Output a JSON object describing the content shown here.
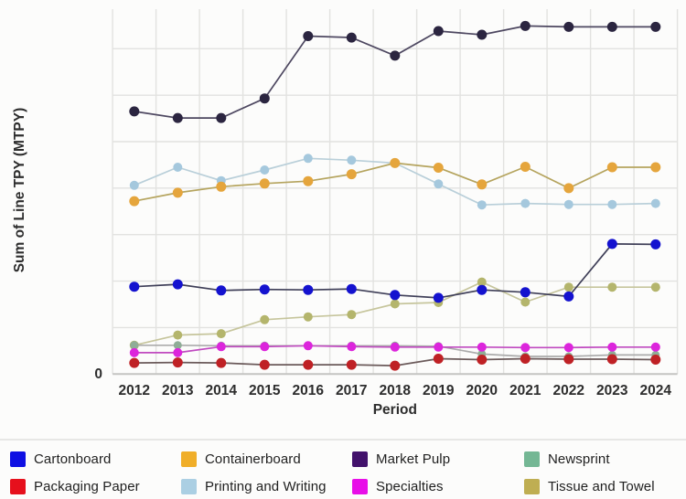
{
  "chart_data": {
    "type": "line",
    "x": [
      2012,
      2013,
      2014,
      2015,
      2016,
      2017,
      2018,
      2019,
      2020,
      2021,
      2022,
      2023,
      2024
    ],
    "xlabel": "Period",
    "ylabel": "Sum of Line TPY (MTPY)",
    "y_tick_labels": [
      "0"
    ],
    "ylim": [
      0,
      7.85
    ],
    "gridline_interval": 1,
    "grid": "on",
    "legend_position": "bottom",
    "note": "Only the 0 tick is labeled on the y-axis; series values are estimated in unlabeled gridline units",
    "series": [
      {
        "name": "Printing and Writing",
        "marker_color": "#a5c8dd",
        "line_color": "#b9cfd9",
        "marker_radius": 5,
        "values": [
          4.06,
          4.45,
          4.16,
          4.39,
          4.64,
          4.6,
          4.54,
          4.09,
          3.64,
          3.67,
          3.65,
          3.65,
          3.67
        ]
      },
      {
        "name": "Containerboard",
        "marker_color": "#e5a53c",
        "line_color": "#b5a45e",
        "marker_radius": 5.5,
        "values": [
          3.72,
          3.9,
          4.03,
          4.1,
          4.15,
          4.3,
          4.54,
          4.44,
          4.08,
          4.46,
          4.0,
          4.45,
          4.45
        ]
      },
      {
        "name": "Tissue and Towel",
        "marker_color": "#b4b56c",
        "line_color": "#c6c59c",
        "marker_radius": 5,
        "values": [
          0.62,
          0.84,
          0.87,
          1.17,
          1.23,
          1.28,
          1.51,
          1.54,
          1.98,
          1.55,
          1.87,
          1.87,
          1.87
        ]
      },
      {
        "name": "Newsprint",
        "marker_color": "#8fad97",
        "line_color": "#ababab",
        "marker_radius": 4.5,
        "values": [
          0.62,
          0.62,
          0.61,
          0.61,
          0.61,
          0.61,
          0.61,
          0.6,
          0.43,
          0.38,
          0.38,
          0.41,
          0.41
        ]
      },
      {
        "name": "Packaging Paper",
        "marker_color": "#bf2125",
        "line_color": "#6b5a5a",
        "marker_radius": 5.5,
        "values": [
          0.24,
          0.25,
          0.24,
          0.2,
          0.2,
          0.2,
          0.18,
          0.33,
          0.31,
          0.33,
          0.32,
          0.32,
          0.31
        ]
      },
      {
        "name": "Specialties",
        "marker_color": "#dc25dc",
        "line_color": "#c04ac0",
        "marker_radius": 5,
        "values": [
          0.46,
          0.46,
          0.59,
          0.59,
          0.61,
          0.59,
          0.58,
          0.58,
          0.58,
          0.57,
          0.57,
          0.58,
          0.58
        ]
      },
      {
        "name": "Cartonboard",
        "marker_color": "#1412cf",
        "line_color": "#3f3f58",
        "marker_radius": 5.5,
        "values": [
          1.88,
          1.93,
          1.8,
          1.82,
          1.81,
          1.83,
          1.7,
          1.64,
          1.81,
          1.76,
          1.67,
          2.8,
          2.79
        ]
      },
      {
        "name": "Market Pulp",
        "marker_color": "#2b2540",
        "line_color": "#4d4760",
        "marker_radius": 5.5,
        "values": [
          5.65,
          5.51,
          5.51,
          5.93,
          7.27,
          7.24,
          6.85,
          7.38,
          7.3,
          7.49,
          7.47,
          7.47,
          7.47
        ]
      }
    ]
  },
  "x_axis": {
    "label": "Period",
    "ticks": [
      "2012",
      "2013",
      "2014",
      "2015",
      "2016",
      "2017",
      "2018",
      "2019",
      "2020",
      "2021",
      "2022",
      "2023",
      "2024"
    ]
  },
  "y_axis": {
    "label": "Sum of Line TPY (MTPY)",
    "ticks": [
      "0"
    ]
  },
  "legend": {
    "items": [
      {
        "label": "Cartonboard",
        "color": "#0f10e3"
      },
      {
        "label": "Containerboard",
        "color": "#f0ae29"
      },
      {
        "label": "Market Pulp",
        "color": "#42116b"
      },
      {
        "label": "Newsprint",
        "color": "#74b794"
      },
      {
        "label": "Packaging Paper",
        "color": "#e6101c"
      },
      {
        "label": "Printing and Writing",
        "color": "#abcfe3"
      },
      {
        "label": "Specialties",
        "color": "#e80ee8"
      },
      {
        "label": "Tissue and Towel",
        "color": "#bfae52"
      }
    ]
  },
  "colors": {
    "gridline": "#e2e2e0",
    "axis_line": "#c4c4c2",
    "tick_text": "#2d2d2d"
  }
}
